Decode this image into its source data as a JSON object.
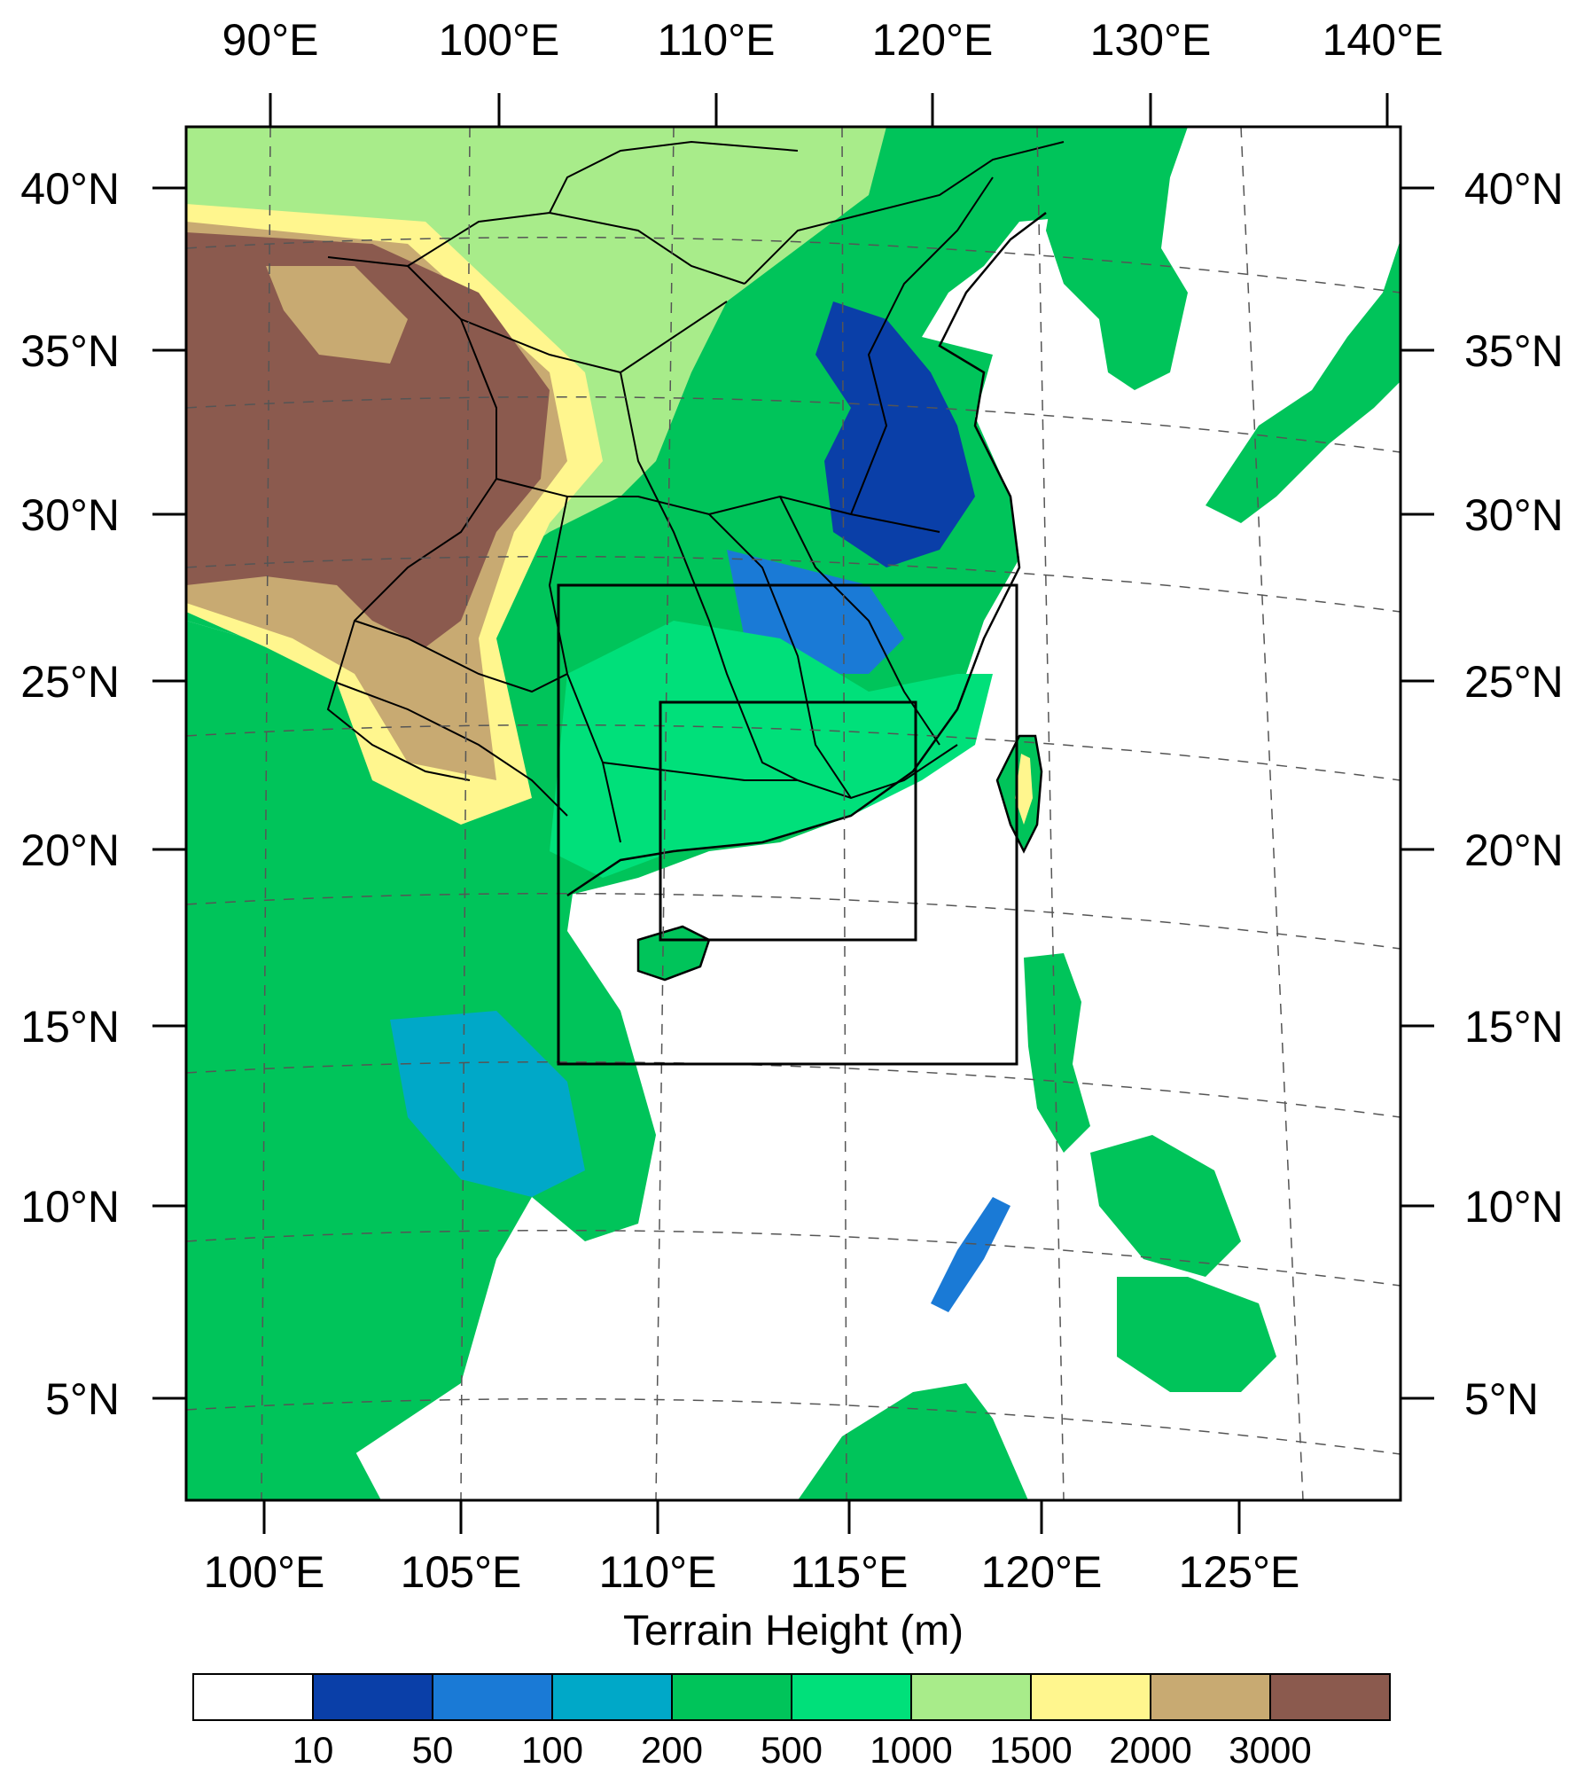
{
  "map": {
    "top_lon_labels": [
      "90°E",
      "100°E",
      "110°E",
      "120°E",
      "130°E",
      "140°E"
    ],
    "bottom_lon_labels": [
      "100°E",
      "105°E",
      "110°E",
      "115°E",
      "120°E",
      "125°E"
    ],
    "left_lat_labels": [
      "40°N",
      "35°N",
      "30°N",
      "25°N",
      "20°N",
      "15°N",
      "10°N",
      "5°N"
    ],
    "right_lat_labels": [
      "40°N",
      "35°N",
      "30°N",
      "25°N",
      "20°N",
      "15°N",
      "10°N",
      "5°N"
    ],
    "xlabel": "Terrain Height (m)"
  },
  "colorbar": {
    "labels": [
      "10",
      "50",
      "100",
      "200",
      "500",
      "1000",
      "1500",
      "2000",
      "3000"
    ],
    "colors": [
      "#ffffff",
      "#0a3fa8",
      "#1a7ad6",
      "#00a8c8",
      "#00c45a",
      "#00e07a",
      "#a8ec8a",
      "#fff68e",
      "#c8aa72",
      "#8b5a4e"
    ]
  },
  "domains": {
    "nested_boxes": 2,
    "outer_bounds": {
      "lon": [
        107.5,
        119.2
      ],
      "lat": [
        14.2,
        27.5
      ]
    },
    "inner_bounds": {
      "lon": [
        110.2,
        116.6
      ],
      "lat": [
        17.6,
        24.3
      ]
    }
  }
}
